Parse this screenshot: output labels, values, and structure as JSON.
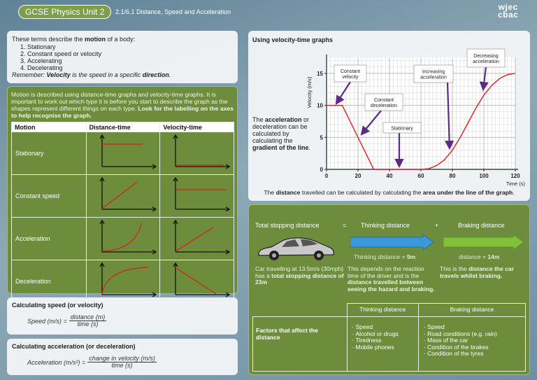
{
  "header": {
    "badge": "GCSE Physics Unit 2",
    "title": "2.1/6.1 Distance, Speed and Acceleration",
    "logo": [
      "wjec",
      "cbac"
    ]
  },
  "terms": {
    "lead": [
      "These terms describe the ",
      "motion",
      " of a body:"
    ],
    "items": [
      "Stationary",
      "Constant speed or velocity",
      "Accelerating",
      "Decelerating"
    ],
    "note": [
      "Remember: ",
      "Velocity",
      " is the speed in a specific ",
      "direction",
      "."
    ]
  },
  "graphs_intro": [
    "Motion is described using distance-time graphs and velocity-time graphs. It is important to work out which type it is before you start to describe the graph as the shapes represent different things on each type. ",
    "Look for the labelling on the axes to help recognise the graph."
  ],
  "motion_table": {
    "headers": [
      "Motion",
      "Distance-time",
      "Velocity-time"
    ],
    "rows": [
      "Stationary",
      "Constant speed",
      "Acceleration",
      "Deceleration"
    ]
  },
  "speed": {
    "title": "Calculating speed (or velocity)",
    "formula": {
      "lhs": "Speed (m/s) =",
      "numerator": "distance (m)",
      "denominator": "time (s)"
    }
  },
  "acceleration": {
    "title": "Calculating acceleration (or deceleration)",
    "formula": {
      "lhs": "Acceleration (m/s²) =",
      "numerator": "change in velocity (m/s)",
      "denominator": "time (s)"
    }
  },
  "velocity_graph": {
    "title": "Using velocity-time graphs",
    "text": [
      "The ",
      "acceleration",
      " or deceleration can be calculated by calculating the ",
      "gradient of the line",
      "."
    ],
    "y_label": "Velocity (m/s)",
    "x_label": "Time (s)",
    "x": [
      0,
      10,
      30,
      60,
      65,
      70,
      75,
      80,
      85,
      90,
      95,
      100,
      105,
      110,
      115,
      120
    ],
    "y": [
      10,
      10,
      0,
      0,
      0.1,
      0.6,
      1.5,
      3,
      5,
      7.3,
      9.6,
      11.6,
      13.1,
      14.2,
      14.8,
      15
    ],
    "xlim": [
      0,
      120
    ],
    "ylim": [
      0,
      17.5
    ],
    "xticks": [
      0,
      20,
      40,
      60,
      80,
      100,
      120
    ],
    "yticks": [
      0,
      5,
      10,
      15
    ],
    "color": "#d62020",
    "annotations": [
      "Constant velocity",
      "Constant deceleration",
      "Stationary",
      "Increasing acceleration",
      "Decreasing acceleration"
    ],
    "caption": [
      "The ",
      "distance",
      " travelled can be calculated by calculating the ",
      "area under the line of the graph",
      "."
    ]
  },
  "stopping": {
    "equation": [
      "Total stopping distance",
      "=",
      "Thinking distance",
      "+",
      "Braking distance"
    ],
    "thinking_result": [
      "Thinking distance = ",
      "9m"
    ],
    "braking_result": [
      "distance = ",
      "14m"
    ],
    "car_text": [
      "Car travelling at 13.5m/s (30mph) has a ",
      "total stopping distance of 23m"
    ],
    "thinking_text": [
      "This depends on the reaction time of the driver and is the ",
      "distance travelled between seeing the hazard and braking."
    ],
    "braking_text": [
      "This is the ",
      "distance the car travels whilst braking."
    ],
    "factors": {
      "headers": [
        "Thinking distance",
        "Braking distance"
      ],
      "row_label": "Factors that affect the distance",
      "thinking": [
        "Speed",
        "Alcohol or drugs",
        "Tiredness",
        "Mobile phones"
      ],
      "braking": [
        "Speed",
        "Road conditions (e.g. rain)",
        "Mass of the car",
        "Condition of the brakes",
        "Condition of the tyres"
      ]
    }
  }
}
